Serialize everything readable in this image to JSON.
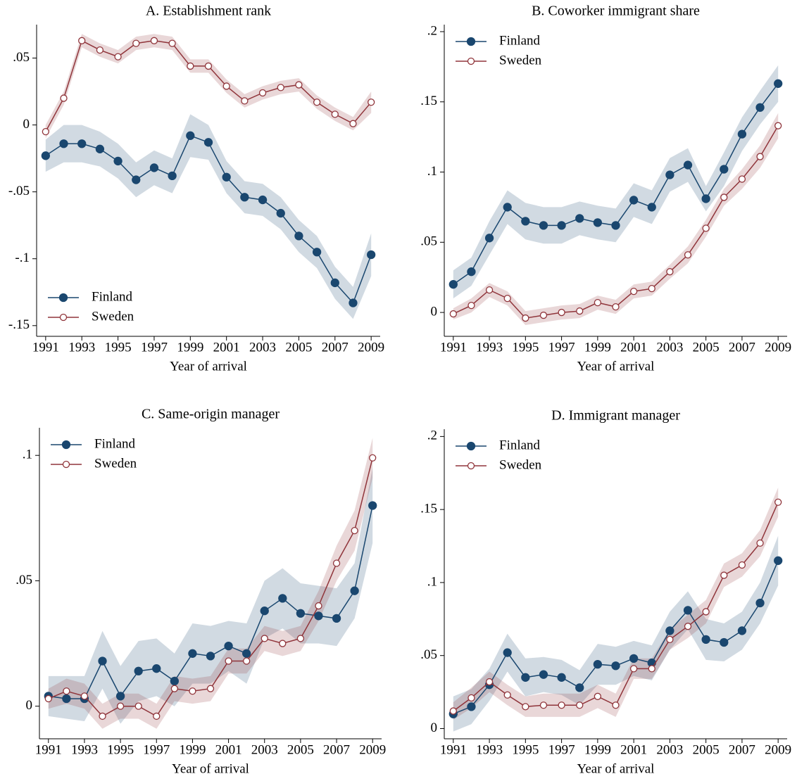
{
  "chart_data": [
    {
      "type": "line",
      "title": "A. Establishment rank",
      "xlabel": "Year of arrival",
      "legend": "lower left",
      "x": [
        1991,
        1992,
        1993,
        1994,
        1995,
        1996,
        1997,
        1998,
        1999,
        2000,
        2001,
        2002,
        2003,
        2004,
        2005,
        2006,
        2007,
        2008,
        2009
      ],
      "xlim": [
        1990.5,
        2009.5
      ],
      "xticks": [
        1991,
        1993,
        1995,
        1997,
        1999,
        2001,
        2003,
        2005,
        2007,
        2009
      ],
      "ylim": [
        -0.158,
        0.075
      ],
      "yticks": [
        {
          "value": -0.15,
          "label": "-.15"
        },
        {
          "value": -0.1,
          "label": "-.1"
        },
        {
          "value": -0.05,
          "label": "-.05"
        },
        0,
        {
          "value": 0.05,
          "label": ".05"
        }
      ],
      "series": [
        {
          "name": "Finland",
          "color": "#1a476f",
          "marker": "filled",
          "values": [
            -0.023,
            -0.014,
            -0.014,
            -0.018,
            -0.027,
            -0.041,
            -0.032,
            -0.038,
            -0.008,
            -0.013,
            -0.039,
            -0.054,
            -0.056,
            -0.066,
            -0.083,
            -0.095,
            -0.118,
            -0.133,
            -0.097
          ],
          "lower": [
            -0.035,
            -0.028,
            -0.028,
            -0.031,
            -0.04,
            -0.054,
            -0.045,
            -0.051,
            -0.024,
            -0.026,
            -0.051,
            -0.066,
            -0.068,
            -0.078,
            -0.095,
            -0.107,
            -0.13,
            -0.145,
            -0.113
          ],
          "upper": [
            -0.011,
            0,
            0,
            -0.005,
            -0.014,
            -0.028,
            -0.019,
            -0.025,
            0.008,
            0,
            -0.027,
            -0.042,
            -0.044,
            -0.054,
            -0.071,
            -0.083,
            -0.106,
            -0.121,
            -0.081
          ]
        },
        {
          "name": "Sweden",
          "color": "#90353b",
          "marker": "hollow",
          "values": [
            -0.005,
            0.02,
            0.063,
            0.056,
            0.051,
            0.061,
            0.063,
            0.061,
            0.044,
            0.044,
            0.029,
            0.018,
            0.024,
            0.028,
            0.03,
            0.017,
            0.008,
            0.001,
            0.017
          ],
          "lower": [
            -0.01,
            0.015,
            0.058,
            0.051,
            0.046,
            0.056,
            0.058,
            0.056,
            0.039,
            0.039,
            0.024,
            0.013,
            0.019,
            0.023,
            0.025,
            0.012,
            0.003,
            -0.004,
            0.009
          ],
          "upper": [
            0,
            0.025,
            0.068,
            0.061,
            0.056,
            0.066,
            0.068,
            0.066,
            0.049,
            0.049,
            0.034,
            0.023,
            0.029,
            0.033,
            0.035,
            0.022,
            0.013,
            0.006,
            0.025
          ]
        }
      ]
    },
    {
      "type": "line",
      "title": "B. Coworker immigrant share",
      "xlabel": "Year of arrival",
      "legend": "upper left",
      "x": [
        1991,
        1992,
        1993,
        1994,
        1995,
        1996,
        1997,
        1998,
        1999,
        2000,
        2001,
        2002,
        2003,
        2004,
        2005,
        2006,
        2007,
        2008,
        2009
      ],
      "xlim": [
        1990.5,
        2009.5
      ],
      "xticks": [
        1991,
        1993,
        1995,
        1997,
        1999,
        2001,
        2003,
        2005,
        2007,
        2009
      ],
      "ylim": [
        -0.017,
        0.205
      ],
      "yticks": [
        0,
        {
          "value": 0.05,
          "label": ".05"
        },
        {
          "value": 0.1,
          "label": ".1"
        },
        {
          "value": 0.15,
          "label": ".15"
        },
        {
          "value": 0.2,
          "label": ".2"
        }
      ],
      "series": [
        {
          "name": "Finland",
          "color": "#1a476f",
          "marker": "filled",
          "values": [
            0.02,
            0.029,
            0.053,
            0.075,
            0.065,
            0.062,
            0.062,
            0.067,
            0.064,
            0.062,
            0.08,
            0.075,
            0.098,
            0.105,
            0.081,
            0.102,
            0.127,
            0.146,
            0.163
          ],
          "lower": [
            0.01,
            0.019,
            0.041,
            0.063,
            0.052,
            0.049,
            0.049,
            0.055,
            0.052,
            0.05,
            0.068,
            0.063,
            0.086,
            0.093,
            0.072,
            0.09,
            0.115,
            0.134,
            0.15
          ],
          "upper": [
            0.03,
            0.039,
            0.065,
            0.087,
            0.078,
            0.075,
            0.075,
            0.079,
            0.076,
            0.074,
            0.092,
            0.087,
            0.11,
            0.117,
            0.09,
            0.114,
            0.139,
            0.158,
            0.176
          ]
        },
        {
          "name": "Sweden",
          "color": "#90353b",
          "marker": "hollow",
          "values": [
            -0.001,
            0.005,
            0.016,
            0.01,
            -0.004,
            -0.002,
            0,
            0.001,
            0.007,
            0.004,
            0.015,
            0.017,
            0.029,
            0.041,
            0.06,
            0.082,
            0.095,
            0.111,
            0.133
          ],
          "lower": [
            -0.005,
            0,
            0.011,
            0.005,
            -0.009,
            -0.007,
            -0.005,
            -0.004,
            0.002,
            -0.001,
            0.01,
            0.012,
            0.024,
            0.035,
            0.054,
            0.076,
            0.088,
            0.103,
            0.124
          ],
          "upper": [
            0.003,
            0.01,
            0.021,
            0.015,
            0.001,
            0.003,
            0.005,
            0.006,
            0.012,
            0.009,
            0.02,
            0.022,
            0.034,
            0.047,
            0.066,
            0.088,
            0.102,
            0.119,
            0.142
          ]
        }
      ]
    },
    {
      "type": "line",
      "title": "C. Same-origin manager",
      "xlabel": "Year of arrival",
      "legend": "upper left",
      "x": [
        1991,
        1992,
        1993,
        1994,
        1995,
        1996,
        1997,
        1998,
        1999,
        2000,
        2001,
        2002,
        2003,
        2004,
        2005,
        2006,
        2007,
        2008,
        2009
      ],
      "xlim": [
        1990.5,
        2009.5
      ],
      "xticks": [
        1991,
        1993,
        1995,
        1997,
        1999,
        2001,
        2003,
        2005,
        2007,
        2009
      ],
      "ylim": [
        -0.013,
        0.111
      ],
      "yticks": [
        0,
        {
          "value": 0.05,
          "label": ".05"
        },
        {
          "value": 0.1,
          "label": ".1"
        }
      ],
      "series": [
        {
          "name": "Finland",
          "color": "#1a476f",
          "marker": "filled",
          "values": [
            0.004,
            0.003,
            0.003,
            0.018,
            0.004,
            0.014,
            0.015,
            0.01,
            0.021,
            0.02,
            0.024,
            0.021,
            0.038,
            0.043,
            0.037,
            0.036,
            0.035,
            0.046,
            0.08
          ],
          "lower": [
            -0.004,
            -0.005,
            -0.006,
            0.007,
            -0.007,
            0.002,
            0.004,
            0,
            0.009,
            0.009,
            0.014,
            0.009,
            0.027,
            0.031,
            0.025,
            0.025,
            0.024,
            0.035,
            0.065
          ],
          "upper": [
            0.012,
            0.012,
            0.012,
            0.03,
            0.016,
            0.026,
            0.027,
            0.021,
            0.033,
            0.032,
            0.034,
            0.033,
            0.05,
            0.055,
            0.049,
            0.048,
            0.047,
            0.057,
            0.095
          ]
        },
        {
          "name": "Sweden",
          "color": "#90353b",
          "marker": "hollow",
          "values": [
            0.003,
            0.006,
            0.004,
            -0.004,
            0,
            0,
            -0.004,
            0.007,
            0.006,
            0.007,
            0.018,
            0.018,
            0.027,
            0.025,
            0.027,
            0.04,
            0.057,
            0.07,
            0.099
          ],
          "lower": [
            -0.001,
            0.001,
            -0.001,
            -0.009,
            -0.005,
            -0.005,
            -0.009,
            0.002,
            0.001,
            0.002,
            0.013,
            0.013,
            0.022,
            0.02,
            0.022,
            0.034,
            0.05,
            0.062,
            0.091
          ],
          "upper": [
            0.007,
            0.011,
            0.009,
            0.001,
            0.005,
            0.005,
            0.001,
            0.012,
            0.011,
            0.012,
            0.023,
            0.023,
            0.032,
            0.03,
            0.032,
            0.046,
            0.064,
            0.078,
            0.107
          ]
        }
      ]
    },
    {
      "type": "line",
      "title": "D. Immigrant manager",
      "xlabel": "Year of arrival",
      "legend": "upper left",
      "x": [
        1991,
        1992,
        1993,
        1994,
        1995,
        1996,
        1997,
        1998,
        1999,
        2000,
        2001,
        2002,
        2003,
        2004,
        2005,
        2006,
        2007,
        2008,
        2009
      ],
      "xlim": [
        1990.5,
        2009.5
      ],
      "xticks": [
        1991,
        1993,
        1995,
        1997,
        1999,
        2001,
        2003,
        2005,
        2007,
        2009
      ],
      "ylim": [
        -0.007,
        0.205
      ],
      "yticks": [
        0,
        {
          "value": 0.05,
          "label": ".05"
        },
        {
          "value": 0.1,
          "label": ".1"
        },
        {
          "value": 0.15,
          "label": ".15"
        },
        {
          "value": 0.2,
          "label": ".2"
        }
      ],
      "series": [
        {
          "name": "Finland",
          "color": "#1a476f",
          "marker": "filled",
          "values": [
            0.01,
            0.015,
            0.03,
            0.052,
            0.035,
            0.037,
            0.035,
            0.028,
            0.044,
            0.043,
            0.048,
            0.045,
            0.067,
            0.081,
            0.061,
            0.059,
            0.067,
            0.086,
            0.115
          ],
          "lower": [
            -0.002,
            0.003,
            0.019,
            0.039,
            0.022,
            0.025,
            0.023,
            0.016,
            0.03,
            0.03,
            0.036,
            0.033,
            0.054,
            0.068,
            0.047,
            0.046,
            0.054,
            0.072,
            0.098
          ],
          "upper": [
            0.022,
            0.027,
            0.041,
            0.065,
            0.048,
            0.049,
            0.047,
            0.04,
            0.058,
            0.056,
            0.06,
            0.057,
            0.08,
            0.094,
            0.075,
            0.072,
            0.08,
            0.1,
            0.132
          ]
        },
        {
          "name": "Sweden",
          "color": "#90353b",
          "marker": "hollow",
          "values": [
            0.012,
            0.021,
            0.032,
            0.023,
            0.015,
            0.016,
            0.016,
            0.016,
            0.022,
            0.016,
            0.041,
            0.041,
            0.061,
            0.07,
            0.08,
            0.105,
            0.112,
            0.127,
            0.155
          ],
          "lower": [
            0.006,
            0.014,
            0.025,
            0.016,
            0.008,
            0.008,
            0.008,
            0.008,
            0.014,
            0.008,
            0.034,
            0.034,
            0.054,
            0.062,
            0.072,
            0.097,
            0.104,
            0.118,
            0.145
          ],
          "upper": [
            0.018,
            0.028,
            0.039,
            0.03,
            0.022,
            0.024,
            0.024,
            0.024,
            0.03,
            0.024,
            0.048,
            0.048,
            0.068,
            0.078,
            0.088,
            0.113,
            0.12,
            0.136,
            0.165
          ]
        }
      ]
    }
  ]
}
